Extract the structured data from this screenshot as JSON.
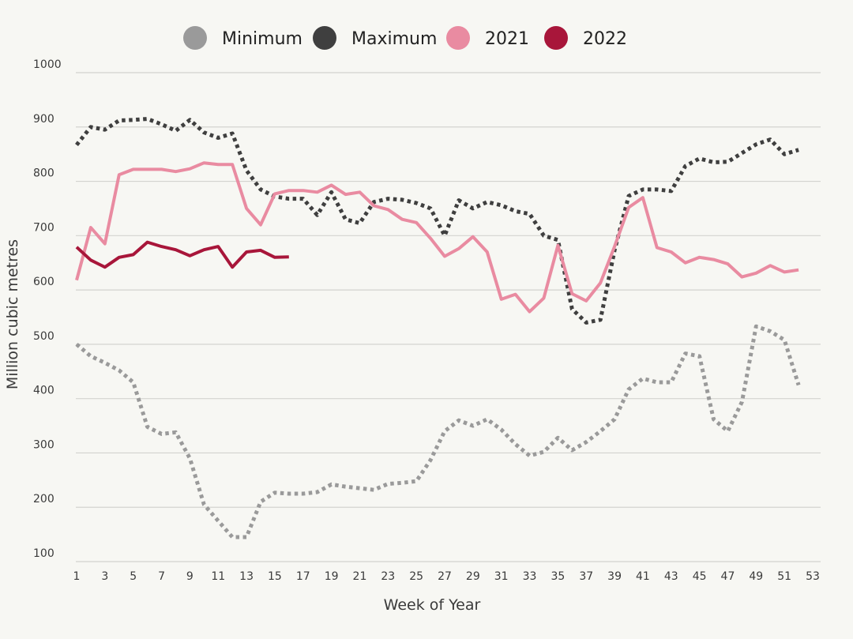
{
  "chart_data": {
    "type": "line",
    "title": "",
    "xlabel": "Week of Year",
    "ylabel": "Million cubic metres",
    "xlim": [
      1,
      53
    ],
    "ylim": [
      100,
      1000
    ],
    "xticks": [
      "1",
      "3",
      "5",
      "7",
      "9",
      "11",
      "13",
      "15",
      "17",
      "19",
      "21",
      "23",
      "25",
      "27",
      "29",
      "31",
      "33",
      "35",
      "37",
      "39",
      "41",
      "43",
      "45",
      "47",
      "49",
      "51",
      "53"
    ],
    "yticks": [
      "100",
      "200",
      "300",
      "400",
      "500",
      "600",
      "700",
      "800",
      "900",
      "1000"
    ],
    "grid": "horizontal",
    "legend_position": "top",
    "series": [
      {
        "name": "Minimum",
        "color": "#9a9a9a",
        "style": "dotted",
        "x": [
          1,
          2,
          3,
          4,
          5,
          6,
          7,
          8,
          9,
          10,
          11,
          12,
          13,
          14,
          15,
          16,
          17,
          18,
          19,
          20,
          21,
          22,
          23,
          24,
          25,
          26,
          27,
          28,
          29,
          30,
          31,
          32,
          33,
          34,
          35,
          36,
          37,
          38,
          39,
          40,
          41,
          42,
          43,
          44,
          45,
          46,
          47,
          48,
          49,
          50,
          51,
          52
        ],
        "values": [
          500,
          478,
          466,
          452,
          430,
          348,
          335,
          338,
          290,
          205,
          175,
          145,
          145,
          210,
          227,
          225,
          225,
          228,
          242,
          238,
          235,
          232,
          243,
          245,
          248,
          287,
          340,
          360,
          350,
          362,
          343,
          316,
          295,
          302,
          328,
          305,
          320,
          340,
          362,
          417,
          437,
          430,
          430,
          483,
          478,
          362,
          340,
          394,
          533,
          524,
          508,
          425
        ]
      },
      {
        "name": "Maximum",
        "color": "#3f3f3f",
        "style": "dotted",
        "x": [
          1,
          2,
          3,
          4,
          5,
          6,
          7,
          8,
          9,
          10,
          11,
          12,
          13,
          14,
          15,
          16,
          17,
          18,
          19,
          20,
          21,
          22,
          23,
          24,
          25,
          26,
          27,
          28,
          29,
          30,
          31,
          32,
          33,
          34,
          35,
          36,
          37,
          38,
          39,
          40,
          41,
          42,
          43,
          44,
          45,
          46,
          47,
          48,
          49,
          50,
          51,
          52
        ],
        "values": [
          867,
          900,
          895,
          912,
          913,
          915,
          905,
          893,
          913,
          890,
          880,
          888,
          820,
          785,
          772,
          768,
          768,
          738,
          780,
          730,
          723,
          762,
          768,
          766,
          760,
          750,
          700,
          765,
          750,
          762,
          756,
          745,
          740,
          700,
          692,
          565,
          540,
          545,
          673,
          773,
          785,
          785,
          782,
          828,
          842,
          835,
          836,
          852,
          868,
          877,
          850,
          858
        ]
      },
      {
        "name": "2021",
        "color": "#e98ba1",
        "style": "solid",
        "x": [
          1,
          2,
          3,
          4,
          5,
          6,
          7,
          8,
          9,
          10,
          11,
          12,
          13,
          14,
          15,
          16,
          17,
          18,
          19,
          20,
          21,
          22,
          23,
          24,
          25,
          26,
          27,
          28,
          29,
          30,
          31,
          32,
          33,
          34,
          35,
          36,
          37,
          38,
          39,
          40,
          41,
          42,
          43,
          44,
          45,
          46,
          47,
          48,
          49,
          50,
          51,
          52
        ],
        "values": [
          618,
          715,
          685,
          812,
          822,
          822,
          822,
          818,
          823,
          834,
          831,
          831,
          750,
          720,
          777,
          783,
          783,
          780,
          793,
          776,
          780,
          755,
          748,
          730,
          724,
          695,
          662,
          676,
          698,
          670,
          583,
          592,
          560,
          585,
          682,
          593,
          580,
          613,
          680,
          752,
          770,
          678,
          670,
          650,
          660,
          656,
          648,
          624,
          631,
          645,
          633,
          637
        ]
      },
      {
        "name": "2022",
        "color": "#a8163a",
        "style": "solid",
        "x": [
          1,
          2,
          3,
          4,
          5,
          6,
          7,
          8,
          9,
          10,
          11,
          12,
          13,
          14,
          15,
          16
        ],
        "values": [
          679,
          655,
          642,
          660,
          665,
          688,
          680,
          674,
          663,
          674,
          680,
          642,
          670,
          673,
          660,
          661
        ]
      }
    ]
  }
}
